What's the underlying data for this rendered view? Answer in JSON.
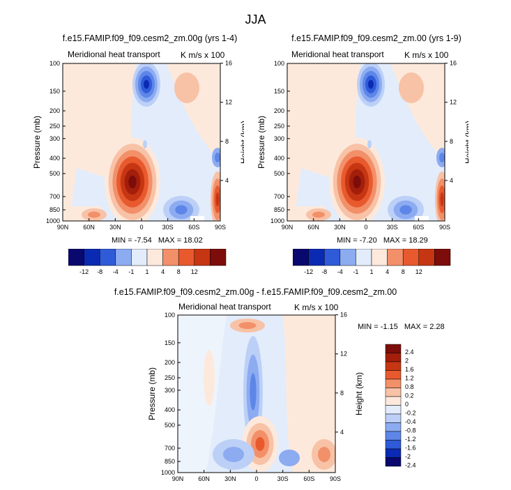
{
  "page_title": "JJA",
  "colors": {
    "scale_diverging": [
      "#08086e",
      "#0b2ab3",
      "#2f5bd9",
      "#5d86e8",
      "#8cabf1",
      "#bcd0f7",
      "#e2ecfb",
      "#fde9dc",
      "#f8c2a6",
      "#f2906a",
      "#e85a2e",
      "#c73612",
      "#a31f0b",
      "#7d0d0a"
    ]
  },
  "panels": [
    {
      "title": "f.e15.FAMIP.f09_f09.cesm2_zm.00g (yrs 1-4)",
      "left_label": "Meridional heat transport",
      "right_label": "K m/s x 100",
      "min_label": "MIN =",
      "min_value": "-7.54",
      "max_label": "MAX =",
      "max_value": "18.02"
    },
    {
      "title": "f.e15.FAMIP.f09_f09.cesm2_zm.00 (yrs 1-9)",
      "left_label": "Meridional heat transport",
      "right_label": "K m/s x 100",
      "min_label": "MIN =",
      "min_value": "-7.20",
      "max_label": "MAX =",
      "max_value": "18.29"
    },
    {
      "title": "f.e15.FAMIP.f09_f09.cesm2_zm.00g - f.e15.FAMIP.f09_f09.cesm2_zm.00",
      "left_label": "Meridional heat transport",
      "right_label": "K m/s x 100",
      "min_label": "MIN =",
      "min_value": "-1.15",
      "max_label": "MAX =",
      "max_value": "2.28"
    }
  ],
  "chart_data": [
    {
      "type": "heatmap",
      "subtype": "latitude-pressure filled contour",
      "title": "f.e15.FAMIP.f09_f09.cesm2_zm.00g (yrs 1-4)",
      "xlabel": "",
      "ylabel": "Pressure (mb)",
      "y2label": "Height (km)",
      "x_ticks": [
        "90N",
        "60N",
        "30N",
        "0",
        "30S",
        "60S",
        "90S"
      ],
      "y_ticks": [
        "100",
        "150",
        "200",
        "250",
        "300",
        "400",
        "500",
        "700",
        "850",
        "1000"
      ],
      "y2_ticks": [
        "16",
        "12",
        "8",
        "4"
      ],
      "y_scale": "log",
      "contour_levels": [
        -12,
        -8,
        -4,
        -1,
        1,
        4,
        8,
        12
      ],
      "min": -7.54,
      "max": 18.02
    },
    {
      "type": "heatmap",
      "subtype": "latitude-pressure filled contour",
      "title": "f.e15.FAMIP.f09_f09.cesm2_zm.00 (yrs 1-9)",
      "xlabel": "",
      "ylabel": "Pressure (mb)",
      "y2label": "Height (km)",
      "x_ticks": [
        "90N",
        "60N",
        "30N",
        "0",
        "30S",
        "60S",
        "90S"
      ],
      "y_ticks": [
        "100",
        "150",
        "200",
        "250",
        "300",
        "400",
        "500",
        "700",
        "850",
        "1000"
      ],
      "y2_ticks": [
        "16",
        "12",
        "8",
        "4"
      ],
      "y_scale": "log",
      "contour_levels": [
        -12,
        -8,
        -4,
        -1,
        1,
        4,
        8,
        12
      ],
      "min": -7.2,
      "max": 18.29
    },
    {
      "type": "heatmap",
      "subtype": "latitude-pressure filled contour (difference)",
      "title": "f.e15.FAMIP.f09_f09.cesm2_zm.00g - f.e15.FAMIP.f09_f09.cesm2_zm.00",
      "xlabel": "",
      "ylabel": "Pressure (mb)",
      "y2label": "Height (km)",
      "x_ticks": [
        "90N",
        "60N",
        "30N",
        "0",
        "30S",
        "60S",
        "90S"
      ],
      "y_ticks": [
        "100",
        "150",
        "200",
        "250",
        "300",
        "400",
        "500",
        "700",
        "850",
        "1000"
      ],
      "y2_ticks": [
        "16",
        "12",
        "8",
        "4"
      ],
      "y_scale": "log",
      "contour_levels": [
        -2.4,
        -2,
        -1.6,
        -1.2,
        -0.8,
        -0.4,
        -0.2,
        0,
        0.2,
        0.8,
        1.2,
        1.6,
        2,
        2.4
      ],
      "colorbar_labels": [
        "2.4",
        "2",
        "1.6",
        "1.2",
        "0.8",
        "0.2",
        "0",
        "-0.2",
        "-0.4",
        "-0.8",
        "-1.2",
        "-1.6",
        "-2",
        "-2.4"
      ],
      "min": -1.15,
      "max": 2.28
    }
  ],
  "colorbar_top": {
    "labels": [
      "-12",
      "-8",
      "-4",
      "-1",
      "1",
      "4",
      "8",
      "12"
    ]
  }
}
